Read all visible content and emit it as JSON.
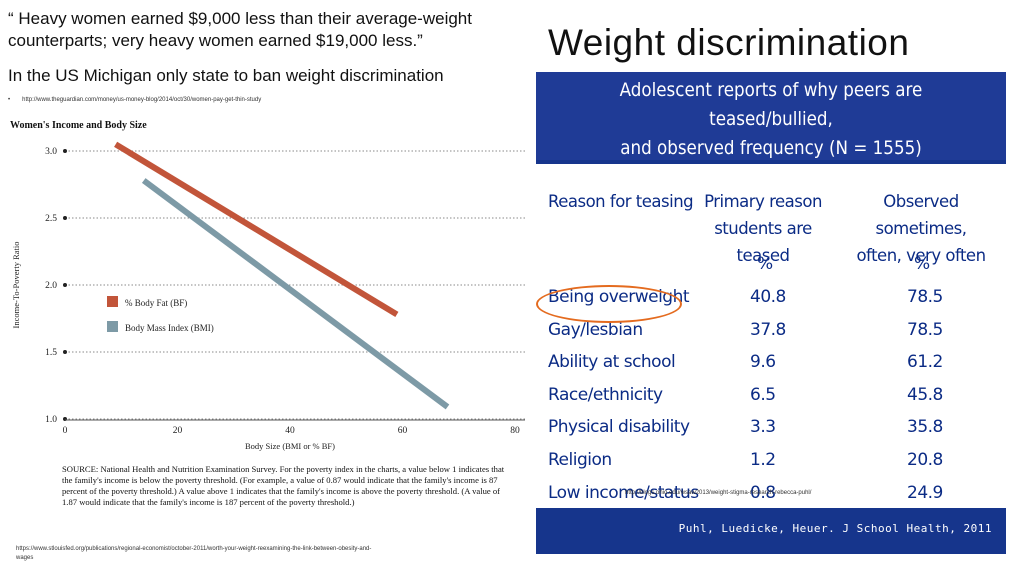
{
  "quote": "“ Heavy women earned $9,000 less than their average-weight counterparts; very heavy women earned $19,000 less.”",
  "subhead": "In the US Michigan only state to ban weight discrimination",
  "bullet_marker": "•",
  "bullet_link": "http://www.theguardian.com/money/us-money-blog/2014/oct/30/women-pay-get-thin-study",
  "title": "Weight discrimination",
  "chart_data": {
    "type": "line",
    "title": "Women's Income and Body Size",
    "xlabel": "Body Size (BMI or % BF)",
    "ylabel": "Income-To-Poverty Ratio",
    "x_ticks": [
      "0",
      "20",
      "40",
      "60",
      "80"
    ],
    "y_ticks": [
      "3.0",
      "2.5",
      "2.0",
      "1.5",
      "1.0"
    ],
    "xlim": [
      0,
      80
    ],
    "ylim": [
      1.0,
      3.0
    ],
    "grid": "horizontal dotted",
    "legend_position": "middle-left",
    "series": [
      {
        "name": "% Body Fat (BF)",
        "color": "#c2553a",
        "x": [
          9,
          59
        ],
        "y": [
          3.05,
          1.78
        ]
      },
      {
        "name": "Body Mass Index (BMI)",
        "color": "#7d9aa6",
        "x": [
          14,
          68
        ],
        "y": [
          2.78,
          1.09
        ]
      }
    ]
  },
  "chart_source": "SOURCE: National Health and Nutrition Examination Survey. For the poverty index in the charts, a value below 1 indicates that the family's income is below the poverty threshold. (For example, a value of 0.87 would indicate that the family's income is 87 percent of the poverty threshold.) A value above 1 indicates that the family's income is above the poverty threshold. (A value of 1.87 would indicate that the family's income is 187 percent of the poverty threshold.)",
  "credit_left": "https://www.stlouisfed.org/publications/regional-economist/october-2011/worth-your-weight-reexamining-the-link-between-obesity-and-wages",
  "panel": {
    "heading_line1": "Adolescent reports of why peers are teased/bullied,",
    "heading_line2": "and observed frequency (N = 1555)",
    "col1": "Reason for teasing",
    "col2_line1": "Primary reason",
    "col2_line2": "students are teased",
    "col3_line1": "Observed sometimes,",
    "col3_line2": "often, very often",
    "unit2": "%",
    "unit3": "%",
    "rows": [
      {
        "reason": "Being overweight",
        "primary": "40.8",
        "observed": "78.5"
      },
      {
        "reason": "Gay/lesbian",
        "primary": "37.8",
        "observed": "78.5"
      },
      {
        "reason": "Ability at school",
        "primary": "9.6",
        "observed": "61.2"
      },
      {
        "reason": "Race/ethnicity",
        "primary": "6.5",
        "observed": "45.8"
      },
      {
        "reason": "Physical disability",
        "primary": "3.3",
        "observed": "35.8"
      },
      {
        "reason": "Religion",
        "primary": "1.2",
        "observed": "20.8"
      },
      {
        "reason": "Low income/status",
        "primary": "0.8",
        "observed": "24.9"
      }
    ],
    "citation": "Puhl, Luedicke, Heuer. J School Health, 2011",
    "highlight_color": "#e46b1f"
  },
  "credit_right": "http://blogs.ohio.edu/wsaw2013/weight-stigma-research-rebecca-puhl/"
}
